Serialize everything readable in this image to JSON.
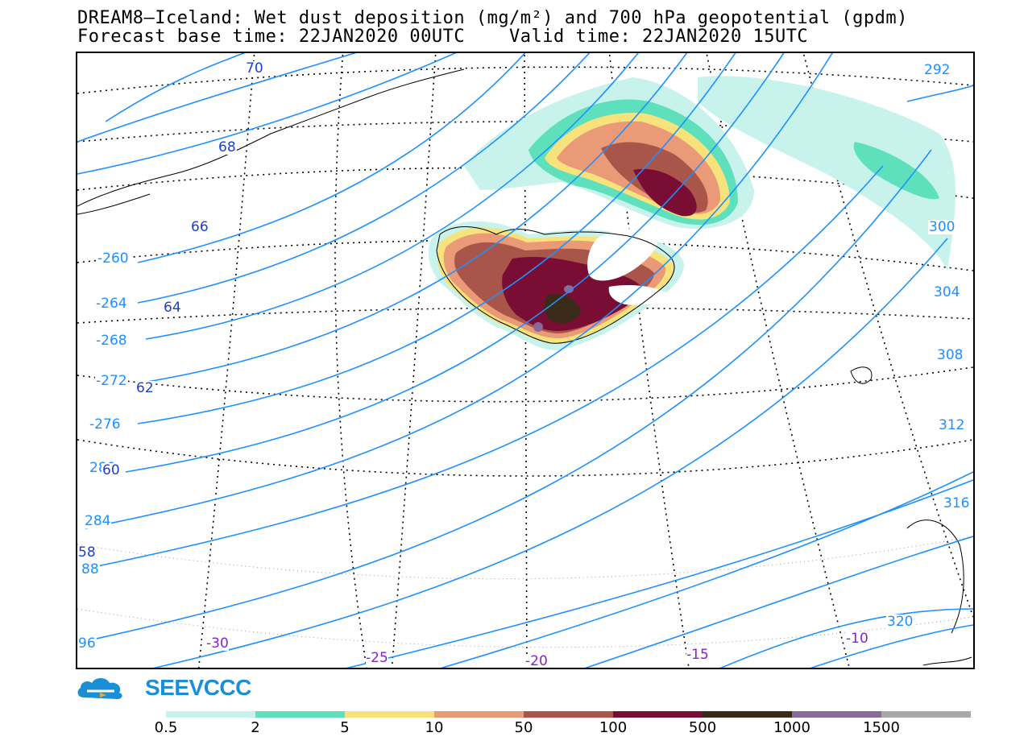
{
  "header": {
    "title_line1": "DREAM8–Iceland: Wet dust deposition (mg/m²) and 700 hPa geopotential (gpdm)",
    "title_line2": "Forecast base time: 22JAN2020 00UTC    Valid time: 22JAN2020 15UTC"
  },
  "logo": {
    "text": "SEEVCCC"
  },
  "colorbar": {
    "labels": [
      "0.5",
      "2",
      "5",
      "10",
      "50",
      "100",
      "500",
      "1000",
      "1500"
    ],
    "colors": [
      "#c8f2ec",
      "#5fe0bd",
      "#f7e27c",
      "#ea9a76",
      "#a95549",
      "#7a0d33",
      "#3a2a18",
      "#8a6a9a",
      "#a8a8a8"
    ]
  },
  "map": {
    "contour_labels": [
      "70",
      "292",
      "68",
      "66",
      "-260",
      "-264",
      "64",
      "-268",
      "-272",
      "62",
      "-276",
      "280",
      "60",
      "284",
      "58",
      "88",
      "96",
      "300",
      "304",
      "308",
      "312",
      "316",
      "320"
    ],
    "longitude_labels": [
      "-30",
      "-25",
      "-20",
      "-15",
      "-10"
    ],
    "contour_color": "#1e90ff",
    "latitude_label_color": "#1a3fd6",
    "longitude_label_color": "#8a1fd0"
  }
}
